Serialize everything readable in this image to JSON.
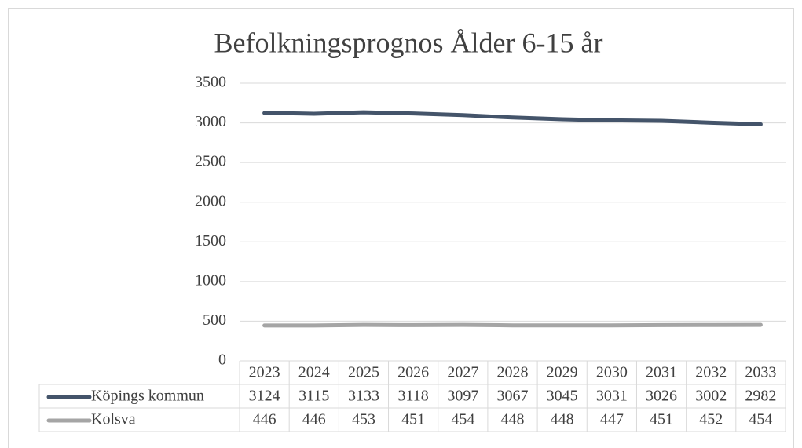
{
  "chart_data": {
    "type": "line",
    "title": "Befolkningsprognos Ålder 6-15 år",
    "categories": [
      "2023",
      "2024",
      "2025",
      "2026",
      "2027",
      "2028",
      "2029",
      "2030",
      "2031",
      "2032",
      "2033"
    ],
    "series": [
      {
        "name": "Köpings kommun",
        "color": "#44546a",
        "values": [
          3124,
          3115,
          3133,
          3118,
          3097,
          3067,
          3045,
          3031,
          3026,
          3002,
          2982
        ]
      },
      {
        "name": "Kolsva",
        "color": "#a5a5a5",
        "values": [
          446,
          446,
          453,
          451,
          454,
          448,
          448,
          447,
          451,
          452,
          454
        ]
      }
    ],
    "ylim": [
      0,
      3500
    ],
    "yticks": [
      0,
      500,
      1000,
      1500,
      2000,
      2500,
      3000,
      3500
    ],
    "grid": true
  }
}
